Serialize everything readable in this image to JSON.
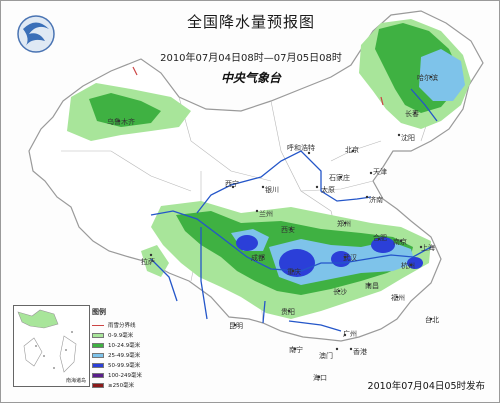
{
  "header": {
    "title": "全国降水量预报图",
    "date_range": "2010年07月04日08时—07月05日08时",
    "agency": "中央气象台"
  },
  "footer": {
    "issued": "2010年07月04日05时发布"
  },
  "legend": {
    "title": "图例",
    "items": [
      {
        "label": "雨雪分界线",
        "kind": "line",
        "color": "#cc4444"
      },
      {
        "label": "0-9.9毫米",
        "kind": "fill",
        "color": "#a8e59a"
      },
      {
        "label": "10-24.9毫米",
        "kind": "fill",
        "color": "#3fb142"
      },
      {
        "label": "25-49.9毫米",
        "kind": "fill",
        "color": "#7ec3ea"
      },
      {
        "label": "50-99.9毫米",
        "kind": "fill",
        "color": "#2b3fd8"
      },
      {
        "label": "100-249毫米",
        "kind": "fill",
        "color": "#5a1f8c"
      },
      {
        "label": "≥250毫米",
        "kind": "fill",
        "color": "#8b1a1a"
      }
    ]
  },
  "inset": {
    "caption": "南海诸岛"
  },
  "cities": [
    {
      "name": "乌鲁木齐"
    },
    {
      "name": "哈尔滨"
    },
    {
      "name": "长春"
    },
    {
      "name": "沈阳"
    },
    {
      "name": "呼和浩特"
    },
    {
      "name": "北京"
    },
    {
      "name": "天津"
    },
    {
      "name": "石家庄"
    },
    {
      "name": "太原"
    },
    {
      "name": "济南"
    },
    {
      "name": "银川"
    },
    {
      "name": "西宁"
    },
    {
      "name": "兰州"
    },
    {
      "name": "西安"
    },
    {
      "name": "郑州"
    },
    {
      "name": "合肥"
    },
    {
      "name": "南京"
    },
    {
      "name": "上海"
    },
    {
      "name": "杭州"
    },
    {
      "name": "武汉"
    },
    {
      "name": "成都"
    },
    {
      "name": "重庆"
    },
    {
      "name": "长沙"
    },
    {
      "name": "南昌"
    },
    {
      "name": "福州"
    },
    {
      "name": "贵阳"
    },
    {
      "name": "昆明"
    },
    {
      "name": "南宁"
    },
    {
      "name": "广州"
    },
    {
      "name": "澳门"
    },
    {
      "name": "香港"
    },
    {
      "name": "海口"
    },
    {
      "name": "台北"
    },
    {
      "name": "拉萨"
    }
  ],
  "colors": {
    "light_green": "#a8e59a",
    "green": "#3fb142",
    "light_blue": "#7ec3ea",
    "blue": "#2b3fd8",
    "river": "#2456c9",
    "border": "#9a9a9a"
  }
}
